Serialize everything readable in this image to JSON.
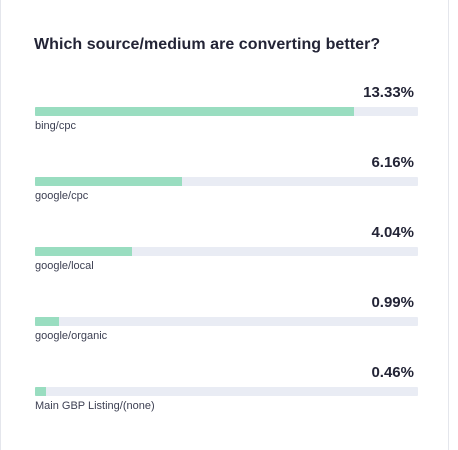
{
  "title": "Which source/medium are converting better?",
  "colors": {
    "bar_fill": "#99ddc0",
    "bar_track": "#e9ecf4",
    "text": "#232436"
  },
  "chart_data": {
    "type": "bar",
    "orientation": "horizontal",
    "title": "Which source/medium are converting better?",
    "categories": [
      "bing/cpc",
      "google/cpc",
      "google/local",
      "google/organic",
      "Main GBP Listing/(none)"
    ],
    "values": [
      13.33,
      6.16,
      4.04,
      0.99,
      0.46
    ],
    "value_labels": [
      "13.33%",
      "6.16%",
      "4.04%",
      "0.99%",
      "0.46%"
    ],
    "unit": "%",
    "xlim": [
      0,
      16
    ],
    "grid": false
  }
}
